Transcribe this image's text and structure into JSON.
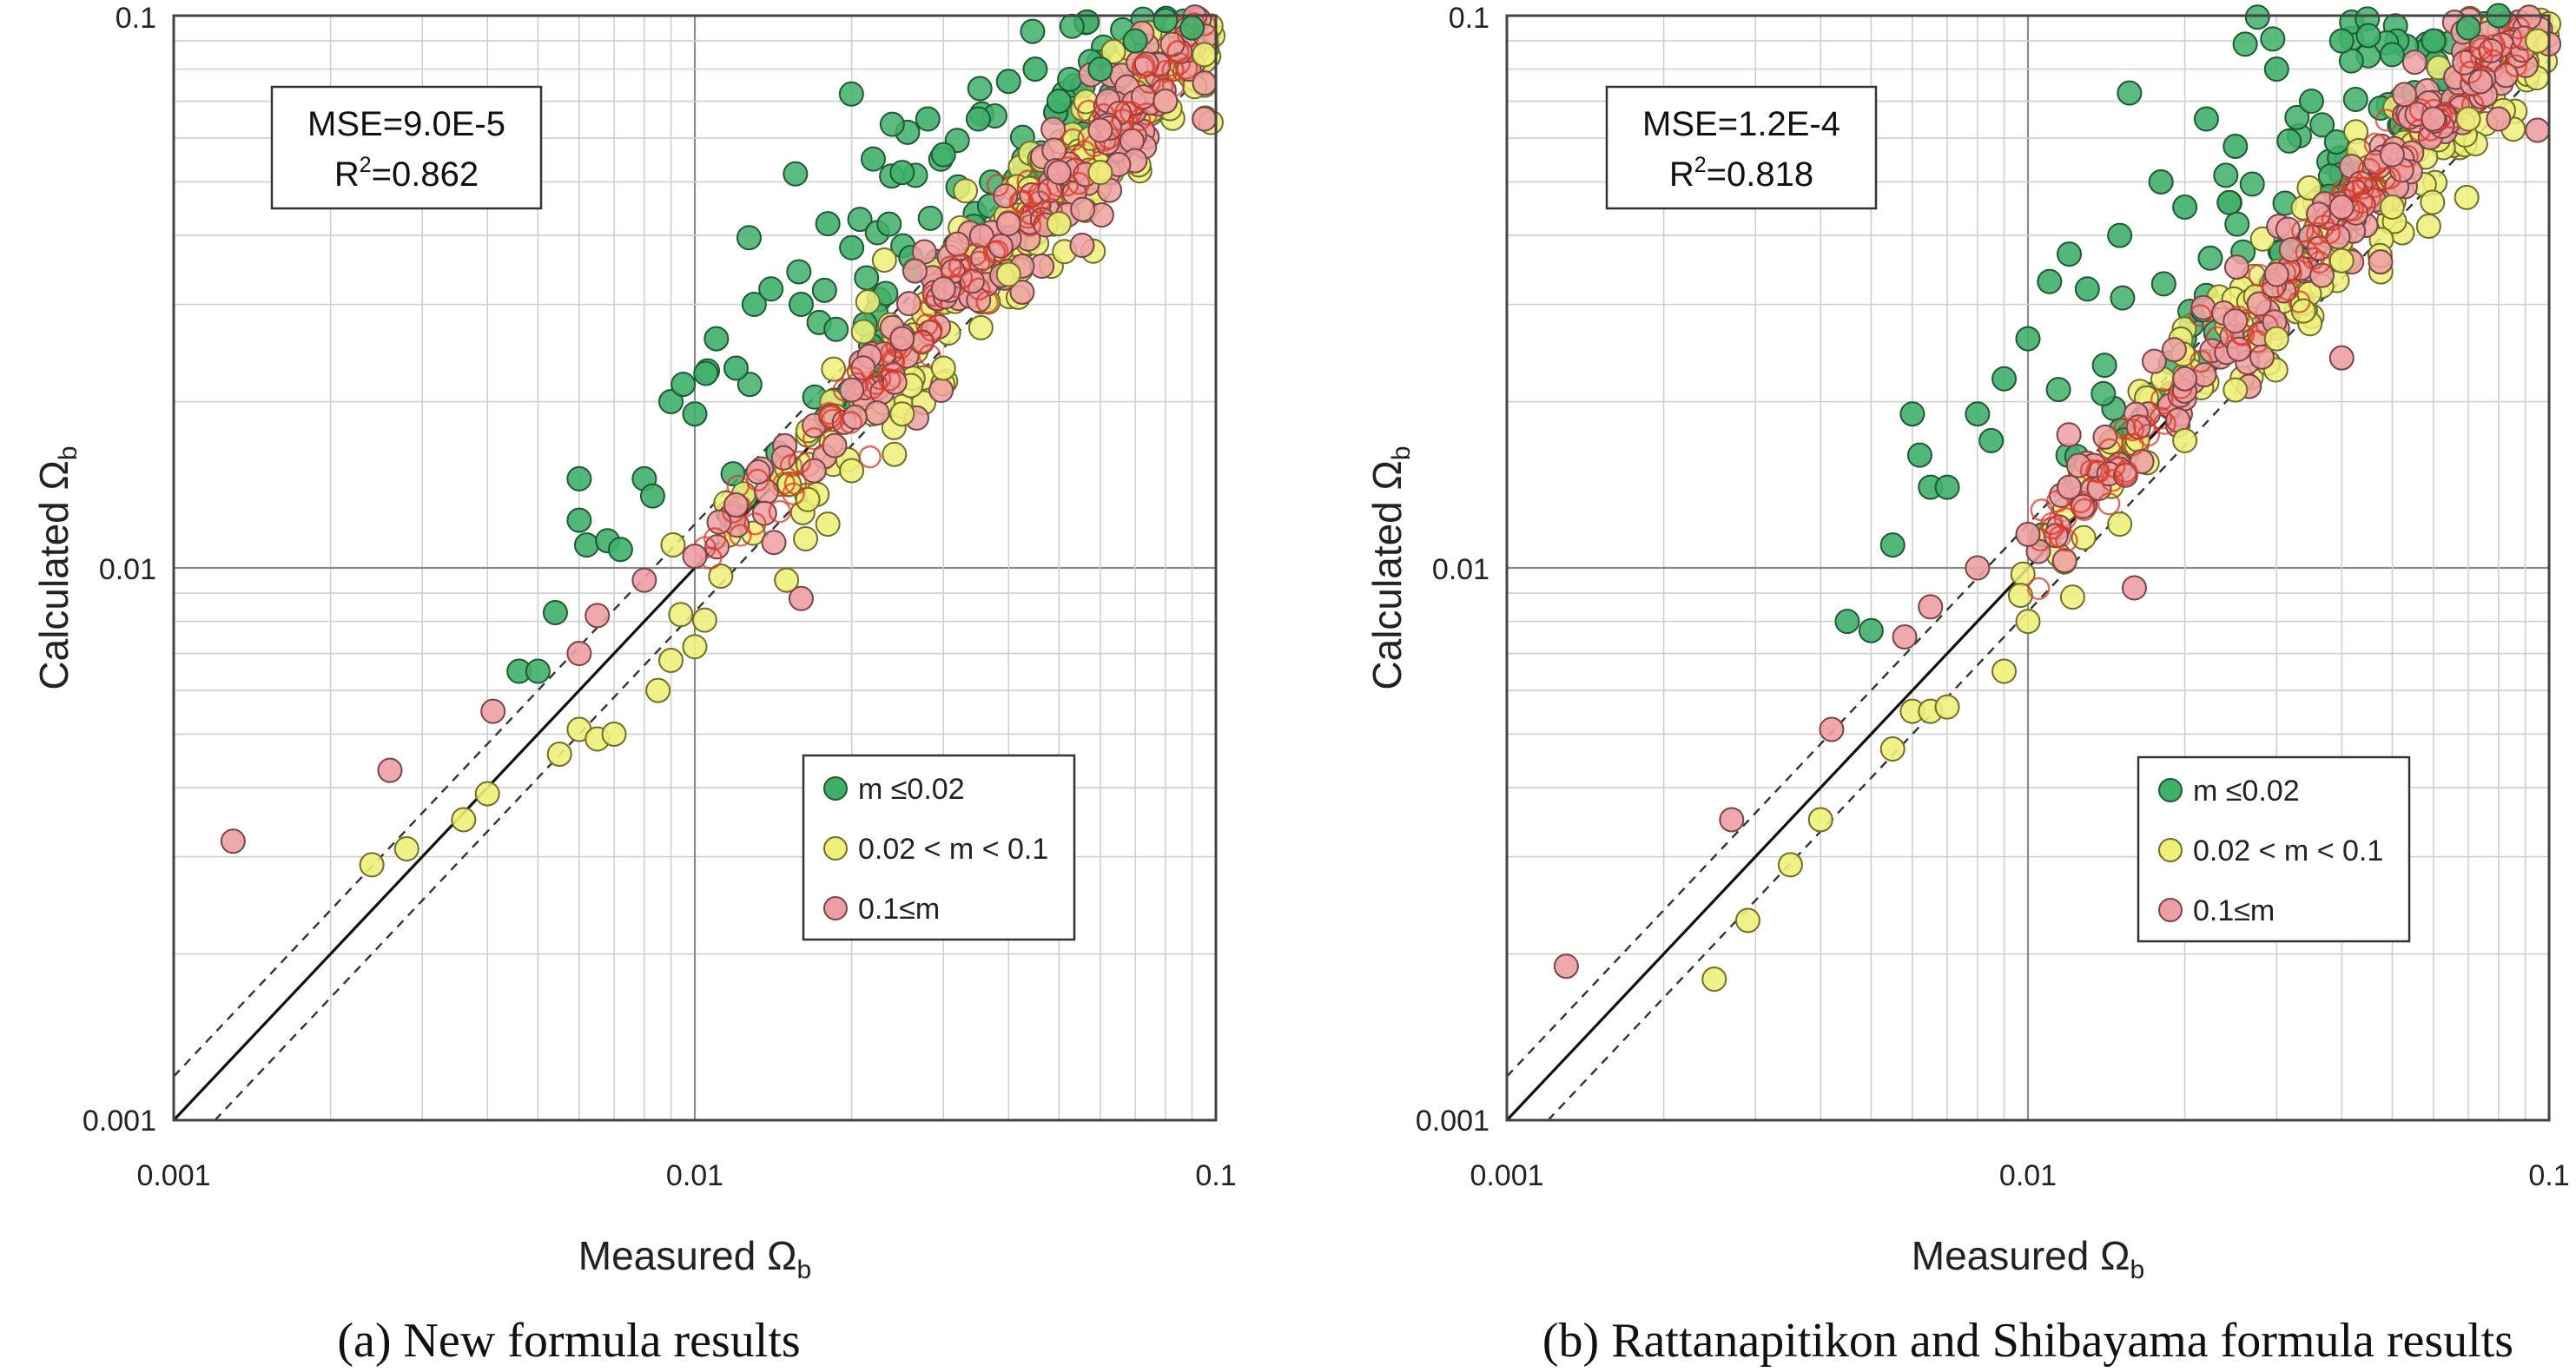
{
  "figure": {
    "series_styles": [
      {
        "name": "m ≤0.02",
        "fill": "#3fb06a",
        "stroke": "#1d5a33"
      },
      {
        "name": "0.02 < m < 0.1",
        "fill": "#eef07a",
        "stroke": "#6e7028"
      },
      {
        "name": "0.1≤m",
        "fill": "#eda0a3",
        "stroke": "#7a4446"
      }
    ],
    "accent_red": "#d93a2a"
  },
  "chart_data": [
    {
      "type": "scatter",
      "title": "",
      "caption": "(a)  New  formula  results",
      "xlabel": "Measured Ω",
      "xlabel_sub": "b",
      "ylabel": "Calculated Ω",
      "ylabel_sub": "b",
      "xscale": "log",
      "yscale": "log",
      "xlim": [
        0.001,
        0.1
      ],
      "ylim": [
        0.001,
        0.1
      ],
      "xticks": [
        "0.001",
        "0.01",
        "0.1"
      ],
      "yticks": [
        "0.001",
        "0.01",
        "0.1"
      ],
      "grid": true,
      "stats": {
        "mse": "MSE=9.0E-5",
        "r2_prefix": "R",
        "r2_sup": "2",
        "r2_value": "=0.862"
      },
      "legend_position": "bottom-right",
      "legend": [
        "m ≤0.02",
        "0.02 < m < 0.1",
        "0.1≤m"
      ],
      "reference_lines": {
        "perfect_fit": "y = x",
        "bounds": [
          "y = 1.2x",
          "y = x/1.2"
        ]
      },
      "generator": {
        "seed": 12345,
        "bias": 1.0,
        "spread_green_top": 2.0
      },
      "series": [
        {
          "name": "m ≤0.02",
          "values": [
            [
              0.0046,
              0.0065
            ],
            [
              0.005,
              0.0065
            ],
            [
              0.0054,
              0.0083
            ],
            [
              0.006,
              0.0145
            ],
            [
              0.006,
              0.0122
            ],
            [
              0.0062,
              0.011
            ],
            [
              0.0068,
              0.0112
            ],
            [
              0.0072,
              0.0108
            ],
            [
              0.008,
              0.0145
            ],
            [
              0.0083,
              0.0135
            ],
            [
              0.009,
              0.02
            ],
            [
              0.0095,
              0.0215
            ],
            [
              0.01,
              0.019
            ],
            [
              0.0105,
              0.0225
            ],
            [
              0.011,
              0.026
            ],
            [
              0.012,
              0.023
            ],
            [
              0.013,
              0.03
            ],
            [
              0.014,
              0.032
            ],
            [
              0.016,
              0.03
            ],
            [
              0.018,
              0.042
            ],
            [
              0.02,
              0.038
            ],
            [
              0.022,
              0.055
            ],
            [
              0.025,
              0.052
            ],
            [
              0.028,
              0.065
            ],
            [
              0.03,
              0.056
            ],
            [
              0.035,
              0.065
            ],
            [
              0.04,
              0.076
            ],
            [
              0.045,
              0.08
            ],
            [
              0.05,
              0.07
            ],
            [
              0.06,
              0.08
            ],
            [
              0.07,
              0.09
            ],
            [
              0.08,
              0.098
            ],
            [
              0.09,
              0.095
            ]
          ]
        },
        {
          "name": "0.02 < m < 0.1",
          "values": [
            [
              0.0024,
              0.0029
            ],
            [
              0.0028,
              0.0031
            ],
            [
              0.0036,
              0.0035
            ],
            [
              0.004,
              0.0039
            ],
            [
              0.0055,
              0.0046
            ],
            [
              0.006,
              0.0051
            ],
            [
              0.0065,
              0.0049
            ],
            [
              0.007,
              0.005
            ],
            [
              0.0085,
              0.006
            ],
            [
              0.009,
              0.0068
            ],
            [
              0.01,
              0.0072
            ],
            [
              0.015,
              0.0095
            ],
            [
              0.018,
              0.012
            ],
            [
              0.02,
              0.015
            ],
            [
              0.025,
              0.019
            ],
            [
              0.03,
              0.023
            ],
            [
              0.04,
              0.034
            ],
            [
              0.05,
              0.042
            ],
            [
              0.06,
              0.052
            ],
            [
              0.08,
              0.07
            ],
            [
              0.095,
              0.085
            ]
          ]
        },
        {
          "name": "0.1≤m",
          "values": [
            [
              0.0013,
              0.0032
            ],
            [
              0.0026,
              0.0043
            ],
            [
              0.0041,
              0.0055
            ],
            [
              0.006,
              0.007
            ],
            [
              0.0065,
              0.0082
            ],
            [
              0.008,
              0.0095
            ],
            [
              0.01,
              0.0105
            ],
            [
              0.012,
              0.013
            ],
            [
              0.016,
              0.0088
            ],
            [
              0.02,
              0.021
            ],
            [
              0.025,
              0.026
            ],
            [
              0.03,
              0.032
            ],
            [
              0.04,
              0.042
            ],
            [
              0.05,
              0.052
            ],
            [
              0.06,
              0.062
            ],
            [
              0.08,
              0.07
            ],
            [
              0.095,
              0.065
            ]
          ]
        }
      ]
    },
    {
      "type": "scatter",
      "title": "",
      "caption": "(b)  Rattanapitikon  and  Shibayama  formula  results",
      "xlabel": "Measured Ω",
      "xlabel_sub": "b",
      "ylabel": "Calculated Ω",
      "ylabel_sub": "b",
      "xscale": "log",
      "yscale": "log",
      "xlim": [
        0.001,
        0.1
      ],
      "ylim": [
        0.001,
        0.1
      ],
      "xticks": [
        "0.001",
        "0.01",
        "0.1"
      ],
      "yticks": [
        "0.001",
        "0.01",
        "0.1"
      ],
      "grid": true,
      "stats": {
        "mse": "MSE=1.2E-4",
        "r2_prefix": "R",
        "r2_sup": "2",
        "r2_value": "=0.818"
      },
      "legend_position": "bottom-right",
      "legend": [
        "m ≤0.02",
        "0.02 < m < 0.1",
        "0.1≤m"
      ],
      "reference_lines": {
        "perfect_fit": "y = x",
        "bounds": [
          "y = 1.2x",
          "y = x/1.2"
        ]
      },
      "generator": {
        "seed": 98765,
        "bias": 1.07,
        "spread_green_top": 2.4
      },
      "series": [
        {
          "name": "m ≤0.02",
          "values": [
            [
              0.0045,
              0.008
            ],
            [
              0.005,
              0.0077
            ],
            [
              0.0055,
              0.011
            ],
            [
              0.006,
              0.019
            ],
            [
              0.0062,
              0.016
            ],
            [
              0.0065,
              0.014
            ],
            [
              0.007,
              0.014
            ],
            [
              0.008,
              0.019
            ],
            [
              0.0085,
              0.017
            ],
            [
              0.009,
              0.022
            ],
            [
              0.01,
              0.026
            ],
            [
              0.011,
              0.033
            ],
            [
              0.012,
              0.037
            ],
            [
              0.013,
              0.032
            ],
            [
              0.015,
              0.04
            ],
            [
              0.018,
              0.05
            ],
            [
              0.02,
              0.045
            ],
            [
              0.022,
              0.065
            ],
            [
              0.025,
              0.058
            ],
            [
              0.03,
              0.08
            ],
            [
              0.035,
              0.07
            ],
            [
              0.04,
              0.09
            ],
            [
              0.045,
              0.092
            ],
            [
              0.05,
              0.085
            ],
            [
              0.06,
              0.09
            ],
            [
              0.07,
              0.095
            ],
            [
              0.08,
              0.1
            ]
          ]
        },
        {
          "name": "0.02 < m < 0.1",
          "values": [
            [
              0.0025,
              0.0018
            ],
            [
              0.0029,
              0.0023
            ],
            [
              0.0035,
              0.0029
            ],
            [
              0.004,
              0.0035
            ],
            [
              0.0055,
              0.0047
            ],
            [
              0.006,
              0.0055
            ],
            [
              0.0065,
              0.0055
            ],
            [
              0.007,
              0.0056
            ],
            [
              0.009,
              0.0065
            ],
            [
              0.01,
              0.008
            ],
            [
              0.015,
              0.012
            ],
            [
              0.02,
              0.017
            ],
            [
              0.025,
              0.021
            ],
            [
              0.03,
              0.026
            ],
            [
              0.04,
              0.036
            ],
            [
              0.05,
              0.045
            ],
            [
              0.07,
              0.065
            ],
            [
              0.095,
              0.09
            ]
          ]
        },
        {
          "name": "0.1≤m",
          "values": [
            [
              0.0013,
              0.0019
            ],
            [
              0.0027,
              0.0035
            ],
            [
              0.0042,
              0.0051
            ],
            [
              0.0058,
              0.0075
            ],
            [
              0.0065,
              0.0085
            ],
            [
              0.008,
              0.01
            ],
            [
              0.01,
              0.0115
            ],
            [
              0.012,
              0.014
            ],
            [
              0.016,
              0.0092
            ],
            [
              0.02,
              0.022
            ],
            [
              0.025,
              0.028
            ],
            [
              0.03,
              0.034
            ],
            [
              0.04,
              0.024
            ],
            [
              0.04,
              0.045
            ],
            [
              0.05,
              0.056
            ],
            [
              0.06,
              0.065
            ],
            [
              0.08,
              0.065
            ],
            [
              0.095,
              0.062
            ]
          ]
        }
      ]
    }
  ]
}
